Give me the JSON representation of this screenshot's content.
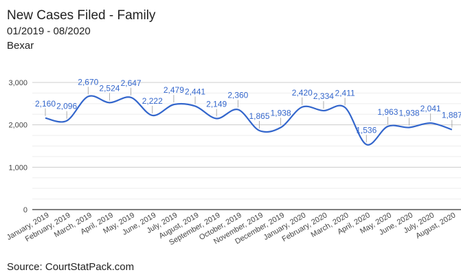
{
  "header": {
    "title": "New Cases Filed - Family",
    "subtitle": "01/2019 - 08/2020",
    "county": "Bexar"
  },
  "footer": {
    "source": "Source: CourtStatPack.com"
  },
  "colors": {
    "line": "#3366cc",
    "grid": "#e0e0e0",
    "axis": "#333333"
  },
  "chart_data": {
    "type": "line",
    "title": "New Cases Filed - Family",
    "xlabel": "",
    "ylabel": "",
    "ylim": [
      0,
      3000
    ],
    "yticks": [
      0,
      1000,
      2000,
      3000
    ],
    "ytick_labels": [
      "0",
      "1,000",
      "2,000",
      "3,000"
    ],
    "grid": true,
    "smooth": true,
    "categories": [
      "January, 2019",
      "February, 2019",
      "March, 2019",
      "April, 2019",
      "May, 2019",
      "June, 2019",
      "July, 2019",
      "August, 2019",
      "September, 2019",
      "October, 2019",
      "November, 2019",
      "December, 2019",
      "January, 2020",
      "February, 2020",
      "March, 2020",
      "April, 2020",
      "May, 2020",
      "June, 2020",
      "July, 2020",
      "August, 2020"
    ],
    "series": [
      {
        "name": "New Cases Filed - Family",
        "values": [
          2160,
          2096,
          2670,
          2524,
          2647,
          2222,
          2479,
          2441,
          2149,
          2360,
          1865,
          1938,
          2420,
          2334,
          2411,
          1536,
          1963,
          1938,
          2041,
          1887
        ],
        "labels": [
          "2,160",
          "2,096",
          "2,670",
          "2,524",
          "2,647",
          "2,222",
          "2,479",
          "2,441",
          "2,149",
          "2,360",
          "1,865",
          "1,938",
          "2,420",
          "2,334",
          "2,411",
          "1,536",
          "1,963",
          "1,938",
          "2,041",
          "1,887"
        ]
      }
    ]
  }
}
